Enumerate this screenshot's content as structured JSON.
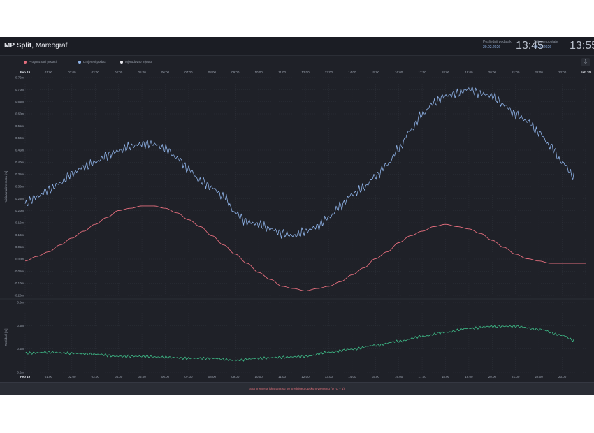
{
  "header": {
    "title_strong": "MP Split",
    "title_rest": ", Mareograf",
    "last_data_label": "Posljednji podatak",
    "last_data_date": "20.02.2026",
    "last_data_time": "13:45",
    "station_time_label": "Vrijeme postaje",
    "station_time_date": "20.02.2026",
    "station_time_time": "13:55"
  },
  "legend": [
    {
      "label": "Prognozirani podaci",
      "color": "#e26d7c"
    },
    {
      "label": "Izmjereni podaci",
      "color": "#8fb3e8"
    },
    {
      "label": "Mjerodavno mjesto",
      "color": "#e8e8ee"
    }
  ],
  "footer": {
    "note": "Sva vremena iskazana su po srednjoeuropskom vremenu (UTC + 1)"
  },
  "colors": {
    "background": "#1f2128",
    "measured": "#8fb3e8",
    "forecast": "#e26d7c",
    "residual": "#3fbf8a",
    "grid": "#30333c",
    "axis_text": "#9aa1ad"
  },
  "chart_data": [
    {
      "type": "line",
      "title": "",
      "xlabel": "",
      "ylabel": "Visina razine mora [m]",
      "x_ticks": [
        "Feb 19",
        "01:00",
        "02:00",
        "03:00",
        "04:00",
        "05:00",
        "06:00",
        "07:00",
        "08:00",
        "09:00",
        "10:00",
        "11:00",
        "12:00",
        "13:00",
        "14:00",
        "15:00",
        "16:00",
        "17:00",
        "18:00",
        "19:00",
        "20:00",
        "21:00",
        "22:00",
        "23:00",
        "Feb 20"
      ],
      "y_ticks": [
        "0.75m",
        "0.70m",
        "0.65m",
        "0.60m",
        "0.55m",
        "0.50m",
        "0.45m",
        "0.40m",
        "0.35m",
        "0.30m",
        "0.25m",
        "0.20m",
        "0.15m",
        "0.10m",
        "0.05m",
        "0.00m",
        "-0.05m",
        "-0.10m",
        "-0.20m"
      ],
      "x_range": [
        0,
        24
      ],
      "ylim": [
        -0.2,
        0.75
      ],
      "grid": true,
      "legend_position": "top-left",
      "series": [
        {
          "name": "Izmjereni podaci",
          "x": [
            0,
            0.5,
            1,
            1.5,
            2,
            2.5,
            3,
            3.5,
            4,
            4.5,
            5,
            5.5,
            6,
            6.5,
            7,
            7.5,
            8,
            8.5,
            9,
            9.5,
            10,
            10.5,
            11,
            11.5,
            12,
            12.5,
            13,
            13.5,
            14,
            14.5,
            15,
            15.5,
            16,
            16.5,
            17,
            17.5,
            18,
            18.5,
            19,
            19.5,
            20,
            20.5,
            21,
            21.5,
            22,
            22.5,
            23,
            23.5
          ],
          "y": [
            0.2,
            0.23,
            0.26,
            0.29,
            0.33,
            0.36,
            0.38,
            0.41,
            0.43,
            0.45,
            0.46,
            0.46,
            0.44,
            0.4,
            0.35,
            0.3,
            0.27,
            0.23,
            0.16,
            0.12,
            0.11,
            0.09,
            0.07,
            0.06,
            0.08,
            0.1,
            0.14,
            0.19,
            0.24,
            0.27,
            0.32,
            0.37,
            0.44,
            0.52,
            0.59,
            0.64,
            0.67,
            0.68,
            0.7,
            0.68,
            0.67,
            0.63,
            0.59,
            0.56,
            0.51,
            0.45,
            0.38,
            0.32
          ]
        },
        {
          "name": "Prognozirani podaci",
          "x": [
            0,
            0.5,
            1,
            1.5,
            2,
            2.5,
            3,
            3.5,
            4,
            4.5,
            5,
            5.5,
            6,
            6.5,
            7,
            7.5,
            8,
            8.5,
            9,
            9.5,
            10,
            10.5,
            11,
            11.5,
            12,
            12.5,
            13,
            13.5,
            14,
            14.5,
            15,
            15.5,
            16,
            16.5,
            17,
            17.5,
            18,
            18.5,
            19,
            19.5,
            20,
            20.5,
            21,
            21.5,
            22,
            22.5,
            23,
            23.5,
            24
          ],
          "y": [
            -0.05,
            -0.03,
            -0.01,
            0.02,
            0.05,
            0.08,
            0.11,
            0.14,
            0.17,
            0.18,
            0.19,
            0.19,
            0.18,
            0.16,
            0.13,
            0.1,
            0.06,
            0.02,
            -0.02,
            -0.06,
            -0.1,
            -0.13,
            -0.16,
            -0.17,
            -0.18,
            -0.17,
            -0.16,
            -0.14,
            -0.11,
            -0.08,
            -0.04,
            -0.01,
            0.03,
            0.06,
            0.08,
            0.1,
            0.11,
            0.1,
            0.09,
            0.07,
            0.04,
            0.01,
            -0.02,
            -0.04,
            -0.05,
            -0.06,
            -0.06,
            -0.06,
            -0.06
          ]
        }
      ]
    },
    {
      "type": "line",
      "title": "",
      "xlabel": "",
      "ylabel": "Rezidual [m]",
      "x_ticks": [
        "Feb 19",
        "01:00",
        "02:00",
        "03:00",
        "04:00",
        "05:00",
        "06:00",
        "07:00",
        "08:00",
        "09:00",
        "10:00",
        "11:00",
        "12:00",
        "13:00",
        "14:00",
        "15:00",
        "16:00",
        "17:00",
        "18:00",
        "19:00",
        "20:00",
        "21:00",
        "22:00",
        "23:00"
      ],
      "y_ticks": [
        "0.8m",
        "0.6m",
        "0.4m",
        "0.2m"
      ],
      "x_range": [
        0,
        24
      ],
      "ylim": [
        0.1,
        0.8
      ],
      "grid": true,
      "series": [
        {
          "name": "Rezidual",
          "x": [
            0,
            1,
            2,
            3,
            4,
            5,
            6,
            7,
            8,
            9,
            10,
            11,
            12,
            13,
            14,
            15,
            16,
            17,
            18,
            19,
            20,
            21,
            22,
            23,
            23.5
          ],
          "y": [
            0.29,
            0.3,
            0.29,
            0.28,
            0.26,
            0.26,
            0.25,
            0.24,
            0.24,
            0.22,
            0.24,
            0.25,
            0.26,
            0.3,
            0.33,
            0.37,
            0.41,
            0.46,
            0.5,
            0.54,
            0.56,
            0.56,
            0.53,
            0.47,
            0.42
          ]
        }
      ]
    }
  ]
}
